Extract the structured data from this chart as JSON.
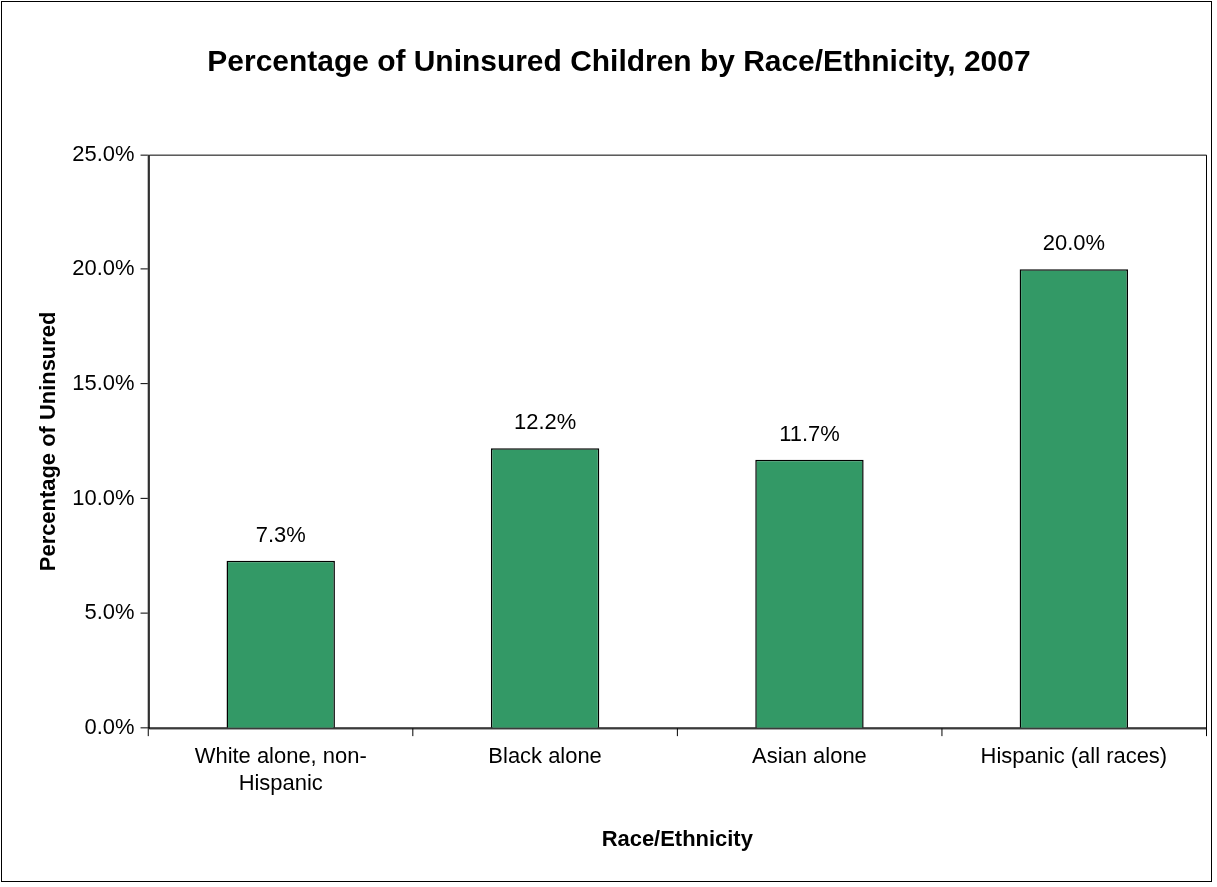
{
  "chart_data": {
    "type": "bar",
    "title": "Percentage of Uninsured Children by Race/Ethnicity, 2007",
    "xlabel": "Race/Ethnicity",
    "ylabel": "Percentage of Uninsured",
    "categories": [
      "White alone, non-Hispanic",
      "Black alone",
      "Asian alone",
      "Hispanic (all races)"
    ],
    "values": [
      7.3,
      12.2,
      11.7,
      20.0
    ],
    "color": "#339966",
    "value_labels": [
      "7.3%",
      "12.2%",
      "11.7%",
      "20.0%"
    ],
    "ylim": [
      0,
      25
    ],
    "yticks": [
      {
        "value": 0,
        "label": "0.0%"
      },
      {
        "value": 5,
        "label": "5.0%"
      },
      {
        "value": 10,
        "label": "10.0%"
      },
      {
        "value": 15,
        "label": "15.0%"
      },
      {
        "value": 20,
        "label": "20.0%"
      },
      {
        "value": 25,
        "label": "25.0%"
      }
    ],
    "grid": false,
    "legend": false
  }
}
